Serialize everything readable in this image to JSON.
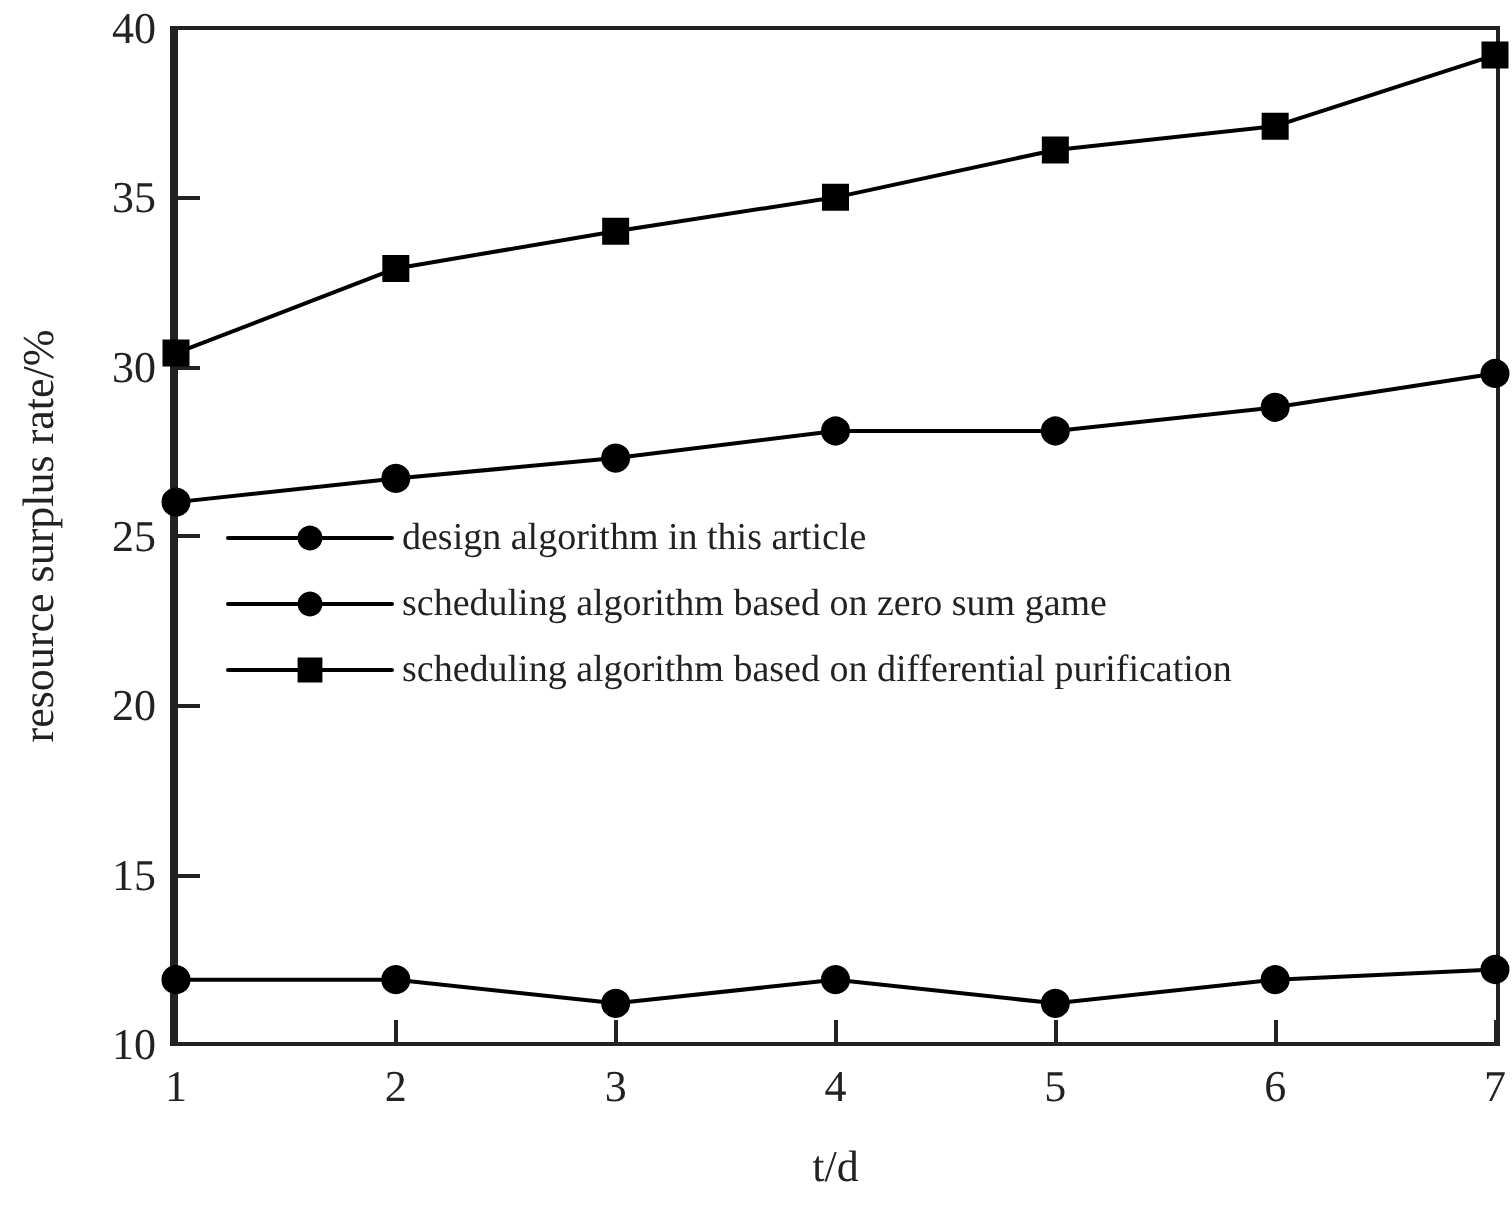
{
  "chart_data": {
    "type": "line",
    "xlabel": "t/d",
    "ylabel": "resource surplus rate/%",
    "x": [
      1,
      2,
      3,
      4,
      5,
      6,
      7
    ],
    "series": [
      {
        "name": "design algorithm in this article",
        "color": "#000000",
        "marker": "circle",
        "values": [
          11.9,
          11.9,
          11.2,
          11.9,
          11.2,
          11.9,
          12.2
        ]
      },
      {
        "name": "scheduling algorithm based on zero sum game",
        "color": "#000000",
        "marker": "circle",
        "values": [
          26.0,
          26.7,
          27.3,
          28.1,
          28.1,
          28.8,
          29.8
        ]
      },
      {
        "name": "scheduling algorithm based on differential purification",
        "color": "#000000",
        "marker": "square",
        "values": [
          30.4,
          32.9,
          34.0,
          35.0,
          36.4,
          37.1,
          39.2
        ]
      }
    ],
    "xlim": [
      1,
      7
    ],
    "xticks": [
      1,
      2,
      3,
      4,
      5,
      6,
      7
    ],
    "ylim": [
      10,
      40
    ],
    "yticks": [
      10,
      15,
      20,
      25,
      30,
      35,
      40
    ],
    "grid": false,
    "legend": "left",
    "line_style": "solid"
  }
}
